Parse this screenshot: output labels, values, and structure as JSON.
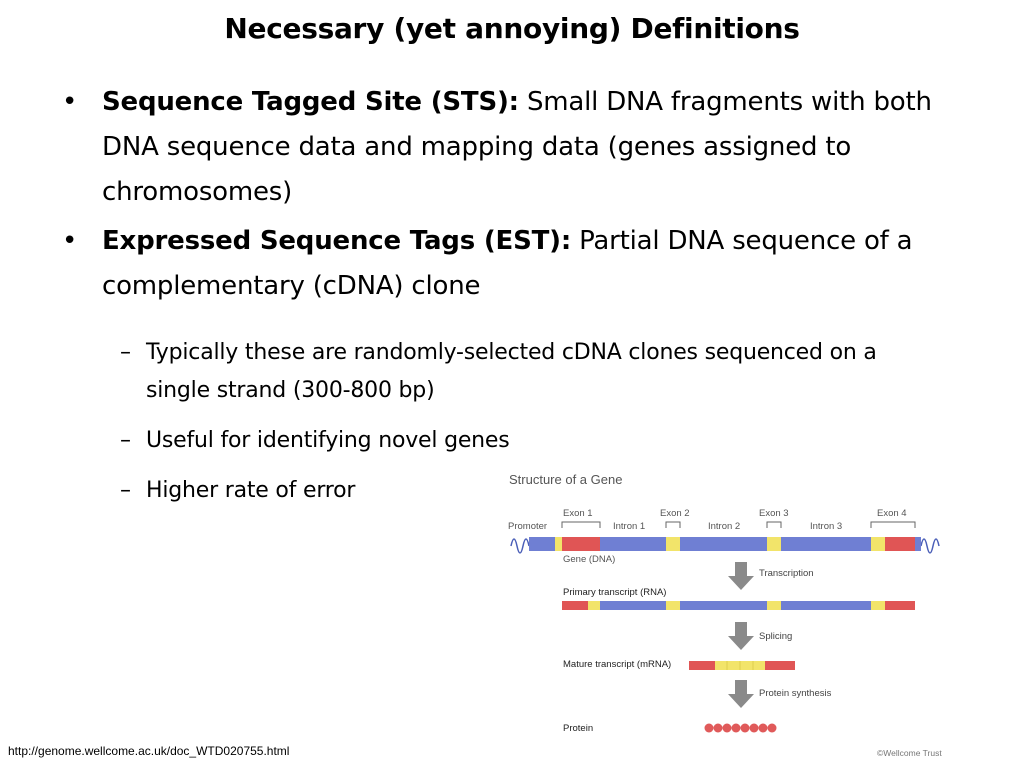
{
  "slide": {
    "title": "Necessary (yet annoying) Definitions",
    "bullets": [
      {
        "term": "Sequence Tagged Site (STS):",
        "text": " Small DNA fragments with both DNA sequence data and mapping data (genes assigned to chromosomes)"
      },
      {
        "term": "Expressed Sequence Tags (EST):",
        "text": " Partial DNA sequence of a complementary (cDNA) clone"
      }
    ],
    "sub_bullets": [
      "Typically these are randomly-selected cDNA clones sequenced on a single strand (300-800 bp)",
      "Useful for identifying novel genes",
      "Higher rate of error"
    ],
    "bullet_glyph": "•",
    "sub_bullet_glyph": "–"
  },
  "figure": {
    "title": "Structure of a Gene",
    "labels": {
      "promoter": "Promoter",
      "exon1": "Exon 1",
      "exon2": "Exon 2",
      "exon3": "Exon 3",
      "exon4": "Exon 4",
      "intron1": "Intron 1",
      "intron2": "Intron 2",
      "intron3": "Intron 3",
      "gene": "Gene (DNA)",
      "transcription": "Transcription",
      "primary": "Primary transcript (RNA)",
      "splicing": "Splicing",
      "mature": "Mature transcript (mRNA)",
      "synthesis": "Protein synthesis",
      "protein": "Protein",
      "credit": "©Wellcome Trust"
    },
    "colors": {
      "intron_blue": "#6f7fd3",
      "exon_red": "#e05555",
      "exon_yellow": "#f2e46a",
      "arrow_gray": "#8a8a8a",
      "protein_red": "#e05a5a",
      "label_gray": "#555555"
    }
  },
  "footer": {
    "url": "http://genome.wellcome.ac.uk/doc_WTD020755.html"
  }
}
